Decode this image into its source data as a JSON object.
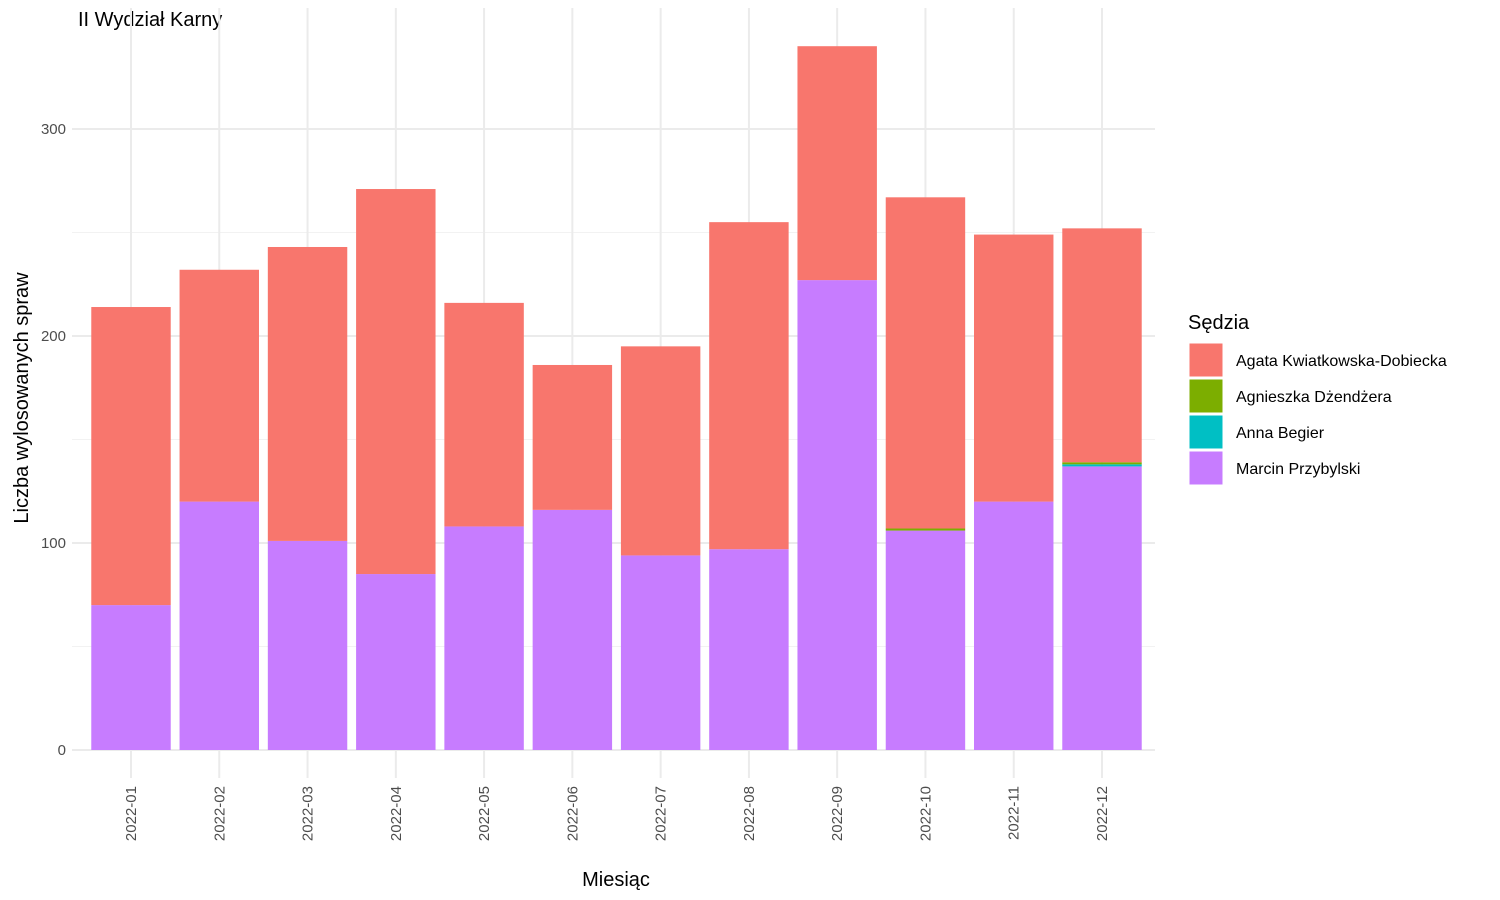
{
  "chart_data": {
    "type": "bar",
    "stacked": true,
    "title": "II Wydział Karny",
    "xlabel": "Miesiąc",
    "ylabel": "Liczba wylosowanych spraw",
    "ylim": [
      0,
      345
    ],
    "yticks": [
      0,
      100,
      200,
      300
    ],
    "grid": true,
    "legend_title": "Sędzia",
    "legend_position": "right",
    "categories": [
      "2022-01",
      "2022-02",
      "2022-03",
      "2022-04",
      "2022-05",
      "2022-06",
      "2022-07",
      "2022-08",
      "2022-09",
      "2022-10",
      "2022-11",
      "2022-12"
    ],
    "series": [
      {
        "name": "Marcin Przybylski",
        "color": "#C77CFF",
        "values": [
          70,
          120,
          101,
          85,
          108,
          116,
          94,
          97,
          227,
          106,
          120,
          137
        ]
      },
      {
        "name": "Anna Begier",
        "color": "#00BFC4",
        "values": [
          0,
          0,
          0,
          0,
          0,
          0,
          0,
          0,
          0,
          0,
          0,
          1
        ]
      },
      {
        "name": "Agnieszka Dżendżera",
        "color": "#7CAE00",
        "values": [
          0,
          0,
          0,
          0,
          0,
          0,
          0,
          0,
          0,
          1,
          0,
          1
        ]
      },
      {
        "name": "Agata Kwiatkowska-Dobiecka",
        "color": "#F8766D",
        "values": [
          144,
          112,
          142,
          186,
          108,
          70,
          101,
          158,
          113,
          160,
          129,
          113
        ]
      }
    ],
    "legend_order": [
      "Agata Kwiatkowska-Dobiecka",
      "Agnieszka Dżendżera",
      "Anna Begier",
      "Marcin Przybylski"
    ]
  }
}
